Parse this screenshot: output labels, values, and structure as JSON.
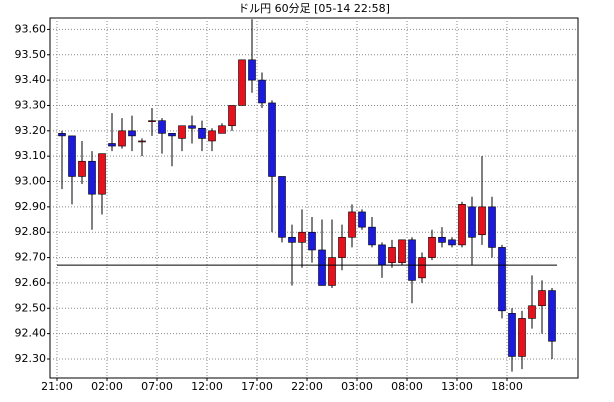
{
  "chart_data": {
    "type": "candlestick",
    "title": "ドル円 60分足 [05-14 22:58]",
    "x": [
      0,
      1,
      2,
      3,
      4,
      5,
      6,
      7,
      8,
      9,
      10,
      11,
      12,
      13,
      14,
      15,
      16,
      17,
      18,
      19,
      20,
      21,
      22,
      23,
      24,
      25,
      26,
      27,
      28,
      29,
      30,
      31,
      32,
      33,
      34,
      35,
      36,
      37,
      38,
      39,
      40,
      41,
      42,
      43,
      44,
      45,
      46,
      47,
      48,
      49
    ],
    "open": [
      93.19,
      93.18,
      93.02,
      93.08,
      92.95,
      93.15,
      93.14,
      93.2,
      93.16,
      93.24,
      93.24,
      93.19,
      93.17,
      93.22,
      93.21,
      93.16,
      93.19,
      93.22,
      93.3,
      93.48,
      93.4,
      93.31,
      93.02,
      92.78,
      92.76,
      92.8,
      92.73,
      92.59,
      92.7,
      92.78,
      92.88,
      92.82,
      92.75,
      92.68,
      92.68,
      92.77,
      92.62,
      92.7,
      92.78,
      92.77,
      92.75,
      92.9,
      92.79,
      92.9,
      92.74,
      92.48,
      92.31,
      92.46,
      92.51,
      92.57
    ],
    "high": [
      93.2,
      93.18,
      93.16,
      93.12,
      93.11,
      93.27,
      93.25,
      93.26,
      93.17,
      93.29,
      93.25,
      93.19,
      93.22,
      93.26,
      93.24,
      93.21,
      93.23,
      93.3,
      93.48,
      93.64,
      93.43,
      93.32,
      93.02,
      92.83,
      92.89,
      92.86,
      92.85,
      92.85,
      92.83,
      92.91,
      92.89,
      92.86,
      92.76,
      92.77,
      92.77,
      92.78,
      92.72,
      92.81,
      92.82,
      92.78,
      92.92,
      92.94,
      93.1,
      92.94,
      92.75,
      92.5,
      92.49,
      92.63,
      92.61,
      92.58
    ],
    "low": [
      92.97,
      92.91,
      92.99,
      92.81,
      92.87,
      93.12,
      93.13,
      93.12,
      93.1,
      93.18,
      93.11,
      93.06,
      93.12,
      93.15,
      93.12,
      93.12,
      93.19,
      93.2,
      93.3,
      93.35,
      93.29,
      92.8,
      92.76,
      92.59,
      92.66,
      92.68,
      92.59,
      92.58,
      92.65,
      92.74,
      92.81,
      92.74,
      92.62,
      92.66,
      92.67,
      92.52,
      92.6,
      92.69,
      92.74,
      92.74,
      92.74,
      92.67,
      92.75,
      92.7,
      92.46,
      92.25,
      92.26,
      92.42,
      92.4,
      92.3
    ],
    "close": [
      93.18,
      93.02,
      93.08,
      92.95,
      93.11,
      93.14,
      93.2,
      93.18,
      93.16,
      93.24,
      93.19,
      93.18,
      93.22,
      93.21,
      93.17,
      93.2,
      93.22,
      93.3,
      93.48,
      93.4,
      93.31,
      93.02,
      92.78,
      92.76,
      92.8,
      92.73,
      92.59,
      92.7,
      92.78,
      92.88,
      92.82,
      92.75,
      92.67,
      92.74,
      92.77,
      92.61,
      92.7,
      92.78,
      92.76,
      92.75,
      92.91,
      92.78,
      92.9,
      92.74,
      92.49,
      92.31,
      92.46,
      92.51,
      92.57,
      92.37
    ],
    "up_color": "#e8101a",
    "down_color": "#1a1ae0",
    "hline": 92.67,
    "xlim": [
      -0.7,
      52.1
    ],
    "ylim": [
      92.225,
      93.645
    ],
    "xticks": [
      {
        "value": 0,
        "label": "21:00"
      },
      {
        "value": 5,
        "label": "02:00"
      },
      {
        "value": 10,
        "label": "07:00"
      },
      {
        "value": 15,
        "label": "12:00"
      },
      {
        "value": 20,
        "label": "17:00"
      },
      {
        "value": 25,
        "label": "22:00"
      },
      {
        "value": 30,
        "label": "03:00"
      },
      {
        "value": 35,
        "label": "08:00"
      },
      {
        "value": 40,
        "label": "13:00"
      },
      {
        "value": 45,
        "label": "18:00"
      }
    ],
    "yticks": [
      {
        "value": 92.3,
        "label": "92.30"
      },
      {
        "value": 92.4,
        "label": "92.40"
      },
      {
        "value": 92.5,
        "label": "92.50"
      },
      {
        "value": 92.6,
        "label": "92.60"
      },
      {
        "value": 92.7,
        "label": "92.70"
      },
      {
        "value": 92.8,
        "label": "92.80"
      },
      {
        "value": 92.9,
        "label": "92.90"
      },
      {
        "value": 93.0,
        "label": "93.00"
      },
      {
        "value": 93.1,
        "label": "93.10"
      },
      {
        "value": 93.2,
        "label": "93.20"
      },
      {
        "value": 93.3,
        "label": "93.30"
      },
      {
        "value": 93.4,
        "label": "93.40"
      },
      {
        "value": 93.5,
        "label": "93.50"
      },
      {
        "value": 93.6,
        "label": "93.60"
      }
    ],
    "grid": true
  }
}
